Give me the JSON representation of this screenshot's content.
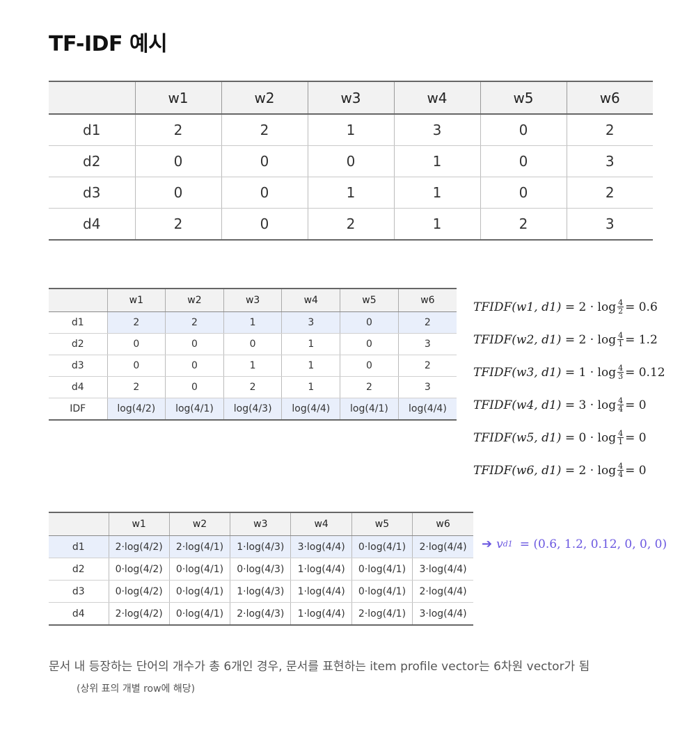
{
  "title": "TF-IDF 예시",
  "table1": {
    "headers": [
      "",
      "w1",
      "w2",
      "w3",
      "w4",
      "w5",
      "w6"
    ],
    "rows": [
      [
        "d1",
        "2",
        "2",
        "1",
        "3",
        "0",
        "2"
      ],
      [
        "d2",
        "0",
        "0",
        "0",
        "1",
        "0",
        "3"
      ],
      [
        "d3",
        "0",
        "0",
        "1",
        "1",
        "0",
        "2"
      ],
      [
        "d4",
        "2",
        "0",
        "2",
        "1",
        "2",
        "3"
      ]
    ]
  },
  "table2": {
    "headers": [
      "",
      "w1",
      "w2",
      "w3",
      "w4",
      "w5",
      "w6"
    ],
    "rows": [
      [
        "d1",
        "2",
        "2",
        "1",
        "3",
        "0",
        "2"
      ],
      [
        "d2",
        "0",
        "0",
        "0",
        "1",
        "0",
        "3"
      ],
      [
        "d3",
        "0",
        "0",
        "1",
        "1",
        "0",
        "2"
      ],
      [
        "d4",
        "2",
        "0",
        "2",
        "1",
        "2",
        "3"
      ],
      [
        "IDF",
        "log(4/2)",
        "log(4/1)",
        "log(4/3)",
        "log(4/4)",
        "log(4/1)",
        "log(4/4)"
      ]
    ]
  },
  "formulas": [
    {
      "lhs": "TFIDF(w1, d1)",
      "coef": "2",
      "num": "4",
      "den": "2",
      "result": "0.6"
    },
    {
      "lhs": "TFIDF(w2, d1)",
      "coef": "2",
      "num": "4",
      "den": "1",
      "result": "1.2"
    },
    {
      "lhs": "TFIDF(w3, d1)",
      "coef": "1",
      "num": "4",
      "den": "3",
      "result": "0.12"
    },
    {
      "lhs": "TFIDF(w4, d1)",
      "coef": "3",
      "num": "4",
      "den": "4",
      "result": "0"
    },
    {
      "lhs": "TFIDF(w5, d1)",
      "coef": "0",
      "num": "4",
      "den": "1",
      "result": "0"
    },
    {
      "lhs": "TFIDF(w6, d1)",
      "coef": "2",
      "num": "4",
      "den": "4",
      "result": "0"
    }
  ],
  "table3": {
    "headers": [
      "",
      "w1",
      "w2",
      "w3",
      "w4",
      "w5",
      "w6"
    ],
    "rows": [
      [
        "d1",
        "2·log(4/2)",
        "2·log(4/1)",
        "1·log(4/3)",
        "3·log(4/4)",
        "0·log(4/1)",
        "2·log(4/4)"
      ],
      [
        "d2",
        "0·log(4/2)",
        "0·log(4/1)",
        "0·log(4/3)",
        "1·log(4/4)",
        "0·log(4/1)",
        "3·log(4/4)"
      ],
      [
        "d3",
        "0·log(4/2)",
        "0·log(4/1)",
        "1·log(4/3)",
        "1·log(4/4)",
        "0·log(4/1)",
        "2·log(4/4)"
      ],
      [
        "d4",
        "2·log(4/2)",
        "0·log(4/1)",
        "2·log(4/3)",
        "1·log(4/4)",
        "2·log(4/1)",
        "3·log(4/4)"
      ]
    ]
  },
  "vector": {
    "arrow": "➔",
    "var": "v",
    "sub": "d1",
    "value": "=  (0.6, 1.2, 0.12, 0, 0, 0)",
    "color": "#6a57e0"
  },
  "note": {
    "line1": "문서 내 등장하는 단어의 개수가 총 6개인 경우, 문서를 표현하는 item profile vector는 6차원 vector가 됨",
    "line2": "(상위 표의 개별 row에 해당)"
  },
  "colors": {
    "highlight": "#e9effb",
    "header_bg": "#f2f2f2"
  }
}
